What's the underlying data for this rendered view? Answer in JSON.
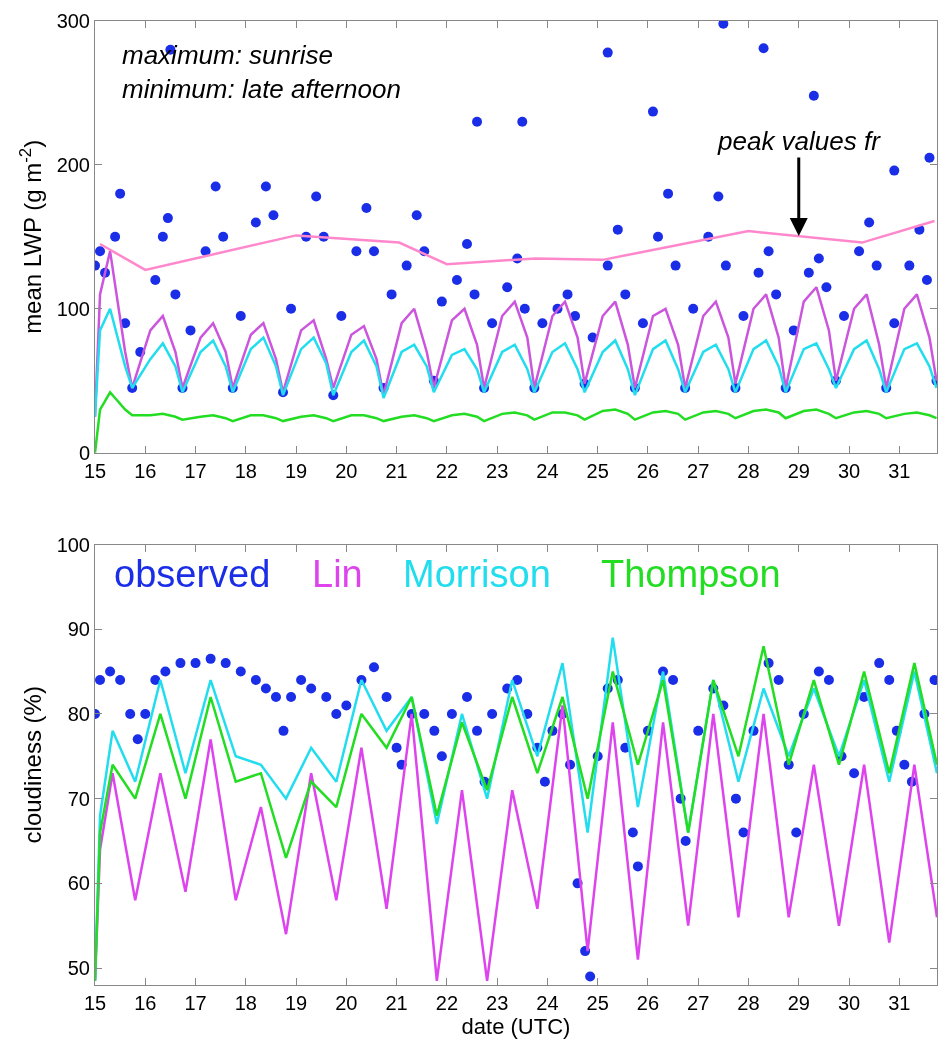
{
  "chart_data": [
    {
      "type": "line",
      "ylabel": "mean LWP (g m$^{-2}$)",
      "xlim": [
        15,
        31.75
      ],
      "xticks": [
        15,
        16,
        17,
        18,
        19,
        20,
        21,
        22,
        23,
        24,
        25,
        26,
        27,
        28,
        29,
        30,
        31
      ],
      "ylim": [
        0,
        300
      ],
      "yticks": [
        0,
        100,
        200,
        300
      ],
      "annotations": [
        "maximum: sunrise\nminimum: late afternoon",
        {
          "text": "peak values fr",
          "x": 29,
          "y": 150.6
        }
      ],
      "x": [
        15,
        15.1,
        15.3,
        15.6,
        15.74,
        16.1,
        16.35,
        16.6,
        16.74,
        17.1,
        17.35,
        17.6,
        17.74,
        18.1,
        18.35,
        18.6,
        18.74,
        19.1,
        19.35,
        19.6,
        19.74,
        20.1,
        20.35,
        20.6,
        20.74,
        21.1,
        21.35,
        21.6,
        21.74,
        22.1,
        22.35,
        22.6,
        22.74,
        23.1,
        23.35,
        23.6,
        23.74,
        24.1,
        24.35,
        24.6,
        24.74,
        25.1,
        25.35,
        25.6,
        25.74,
        26.1,
        26.35,
        26.6,
        26.74,
        27.1,
        27.35,
        27.6,
        27.74,
        28.1,
        28.35,
        28.6,
        28.74,
        29.1,
        29.35,
        29.6,
        29.74,
        30.1,
        30.35,
        30.6,
        30.74,
        31.1,
        31.35,
        31.6,
        31.74
      ],
      "series": [
        {
          "type": "scatter",
          "color": "#1a2ee8",
          "x": [
            15.0,
            15.1,
            15.2,
            15.4,
            15.5,
            15.6,
            15.74,
            15.9,
            16.2,
            16.35,
            16.45,
            16.6,
            16.74,
            16.9,
            17.2,
            17.4,
            17.55,
            17.74,
            17.9,
            18.2,
            18.4,
            18.55,
            18.74,
            18.9,
            19.2,
            19.4,
            19.55,
            19.74,
            19.9,
            20.2,
            20.4,
            20.55,
            20.74,
            20.9,
            21.2,
            21.4,
            21.55,
            21.74,
            21.9,
            22.2,
            22.4,
            22.55,
            22.74,
            22.9,
            23.2,
            23.4,
            23.55,
            23.74,
            23.9,
            24.2,
            24.4,
            24.55,
            24.74,
            24.9,
            25.2,
            25.4,
            25.55,
            25.74,
            25.9,
            26.2,
            26.4,
            26.55,
            26.74,
            26.9,
            27.2,
            27.4,
            27.55,
            27.74,
            27.9,
            28.2,
            28.4,
            28.55,
            28.74,
            28.9,
            29.2,
            29.4,
            29.55,
            29.74,
            29.9,
            30.2,
            30.4,
            30.55,
            30.74,
            30.9,
            31.2,
            31.4,
            31.55,
            31.74,
            16.5,
            22.6,
            23.5,
            25.2,
            26.1,
            27.5,
            28.3,
            29.3,
            30.9,
            31.6
          ],
          "values": [
            130,
            140,
            125,
            150,
            180,
            90,
            45,
            70,
            120,
            150,
            163,
            110,
            45,
            85,
            140,
            185,
            150,
            45,
            95,
            160,
            185,
            165,
            42,
            100,
            150,
            178,
            150,
            40,
            95,
            140,
            170,
            140,
            45,
            110,
            130,
            165,
            140,
            50,
            105,
            120,
            145,
            110,
            45,
            90,
            115,
            135,
            100,
            45,
            90,
            100,
            110,
            95,
            48,
            80,
            130,
            155,
            110,
            45,
            90,
            150,
            180,
            130,
            45,
            100,
            150,
            178,
            130,
            45,
            95,
            125,
            140,
            110,
            45,
            85,
            125,
            135,
            115,
            50,
            95,
            140,
            160,
            130,
            45,
            90,
            130,
            155,
            120,
            50,
            280,
            230,
            230,
            278,
            237,
            298,
            281,
            248,
            196,
            205
          ]
        },
        {
          "color": "#cc55dd",
          "values": [
            25,
            110,
            140,
            70,
            45,
            85,
            95,
            70,
            45,
            80,
            90,
            70,
            45,
            82,
            90,
            65,
            42,
            85,
            92,
            65,
            45,
            82,
            88,
            65,
            40,
            90,
            100,
            70,
            45,
            92,
            100,
            75,
            45,
            95,
            105,
            80,
            45,
            95,
            105,
            80,
            48,
            95,
            105,
            75,
            45,
            95,
            100,
            75,
            45,
            95,
            105,
            80,
            48,
            100,
            110,
            80,
            45,
            105,
            115,
            85,
            50,
            100,
            110,
            75,
            45,
            100,
            110,
            80,
            50
          ]
        },
        {
          "color": "#22ddee",
          "values": [
            25,
            85,
            100,
            60,
            45,
            65,
            76,
            60,
            42,
            70,
            78,
            60,
            42,
            72,
            80,
            60,
            40,
            72,
            80,
            62,
            40,
            70,
            78,
            60,
            38,
            70,
            75,
            60,
            42,
            68,
            72,
            58,
            42,
            70,
            75,
            58,
            42,
            70,
            76,
            58,
            42,
            70,
            78,
            58,
            40,
            72,
            78,
            58,
            42,
            70,
            75,
            58,
            42,
            72,
            78,
            60,
            42,
            72,
            76,
            58,
            45,
            72,
            78,
            58,
            42,
            72,
            76,
            60,
            45
          ]
        },
        {
          "color": "#22dd22",
          "values": [
            0,
            30,
            42,
            30,
            26,
            26,
            27,
            25,
            23,
            25,
            26,
            24,
            22,
            26,
            26,
            24,
            22,
            25,
            26,
            24,
            22,
            26,
            26,
            24,
            22,
            25,
            26,
            24,
            22,
            26,
            27,
            25,
            22,
            27,
            28,
            26,
            23,
            28,
            28,
            26,
            23,
            29,
            30,
            27,
            23,
            28,
            29,
            27,
            23,
            28,
            29,
            27,
            24,
            29,
            30,
            28,
            24,
            29,
            30,
            27,
            24,
            28,
            29,
            27,
            24,
            27,
            28,
            26,
            24
          ]
        },
        {
          "color": "#ff88cc",
          "x": [
            15.1,
            16.0,
            19.0,
            21.05,
            22.0,
            23.76,
            25.1,
            28.0,
            30.26,
            31.7
          ],
          "values": [
            145,
            127,
            151,
            146,
            131,
            135,
            134,
            154,
            146,
            161
          ]
        }
      ]
    },
    {
      "type": "line",
      "ylabel": "cloudiness (%)",
      "xlabel": "date (UTC)",
      "xlim": [
        15,
        31.75
      ],
      "xticks": [
        15,
        16,
        17,
        18,
        19,
        20,
        21,
        22,
        23,
        24,
        25,
        26,
        27,
        28,
        29,
        30,
        31
      ],
      "ylim": [
        48,
        100
      ],
      "yticks": [
        50,
        60,
        70,
        80,
        90,
        100
      ],
      "x": [
        15,
        15.1,
        15.35,
        15.8,
        16.3,
        16.8,
        17.3,
        17.8,
        18.3,
        18.8,
        19.3,
        19.8,
        20.3,
        20.8,
        21.3,
        21.8,
        22.3,
        22.8,
        23.3,
        23.8,
        24.3,
        24.8,
        25.3,
        25.8,
        26.3,
        26.8,
        27.3,
        27.8,
        28.3,
        28.8,
        29.3,
        29.8,
        30.3,
        30.8,
        31.3,
        31.75
      ],
      "series": [
        {
          "type": "scatter",
          "name": "observed",
          "color": "#1a2ee8",
          "x": [
            15.0,
            15.1,
            15.3,
            15.5,
            15.7,
            15.85,
            16.0,
            16.2,
            16.4,
            16.7,
            17.0,
            17.3,
            17.6,
            17.9,
            18.2,
            18.4,
            18.6,
            18.75,
            18.9,
            19.1,
            19.3,
            19.6,
            19.8,
            20.0,
            20.3,
            20.55,
            20.8,
            21.0,
            21.1,
            21.3,
            21.55,
            21.75,
            21.9,
            22.1,
            22.4,
            22.6,
            22.75,
            22.9,
            23.2,
            23.4,
            23.6,
            23.8,
            23.95,
            24.1,
            24.3,
            24.45,
            24.6,
            24.75,
            24.85,
            25.0,
            25.2,
            25.4,
            25.55,
            25.7,
            25.8,
            26.0,
            26.3,
            26.5,
            26.65,
            26.75,
            27.0,
            27.3,
            27.5,
            27.75,
            27.9,
            28.1,
            28.4,
            28.6,
            28.8,
            28.95,
            29.1,
            29.4,
            29.6,
            29.85,
            30.1,
            30.3,
            30.6,
            30.8,
            30.95,
            31.1,
            31.25,
            31.5,
            31.7
          ],
          "values": [
            80,
            84,
            85,
            84,
            80,
            77,
            80,
            84,
            85,
            86,
            86,
            86.5,
            86,
            85,
            84,
            83,
            82,
            78,
            82,
            84,
            83,
            82,
            80,
            81,
            84,
            85.5,
            82,
            76,
            74,
            80,
            80,
            78,
            75,
            80,
            82,
            78,
            72,
            80,
            83,
            84,
            80,
            76,
            72,
            78,
            80,
            74,
            60,
            52,
            49,
            75,
            83,
            84,
            76,
            66,
            62,
            78,
            85,
            84,
            70,
            65,
            78,
            83,
            81,
            70,
            66,
            78,
            86,
            84,
            74,
            66,
            80,
            85,
            84,
            75,
            73,
            82,
            86,
            84,
            78,
            74,
            72,
            80,
            84
          ]
        },
        {
          "name": "Lin",
          "color": "#dd44ee",
          "values": [
            48.5,
            64,
            73,
            58,
            73,
            59,
            77,
            58,
            69,
            54,
            73,
            58,
            76,
            57,
            80,
            48.5,
            71,
            48.5,
            71,
            57,
            81,
            52,
            79,
            51,
            79,
            55,
            80,
            56,
            80,
            56,
            74,
            55,
            74,
            53,
            74,
            56
          ]
        },
        {
          "name": "Morrison",
          "color": "#22ddee",
          "values": [
            48.5,
            68,
            78,
            72,
            84,
            73,
            84,
            75,
            74,
            70,
            76,
            72,
            84,
            78,
            82,
            67,
            80,
            70,
            84,
            75,
            86,
            66,
            89,
            69,
            85,
            66,
            84,
            72,
            83,
            75,
            83,
            75,
            84,
            72,
            85,
            73
          ]
        },
        {
          "name": "Thompson",
          "color": "#22dd22",
          "values": [
            48.5,
            66,
            74,
            70,
            80,
            70,
            82,
            72,
            73,
            63,
            72,
            69,
            80,
            76,
            82,
            68,
            79,
            71,
            82,
            73,
            82,
            70,
            85,
            74,
            84,
            66,
            84,
            75,
            88,
            74,
            84,
            74,
            85,
            73,
            86,
            74
          ]
        }
      ]
    }
  ]
}
